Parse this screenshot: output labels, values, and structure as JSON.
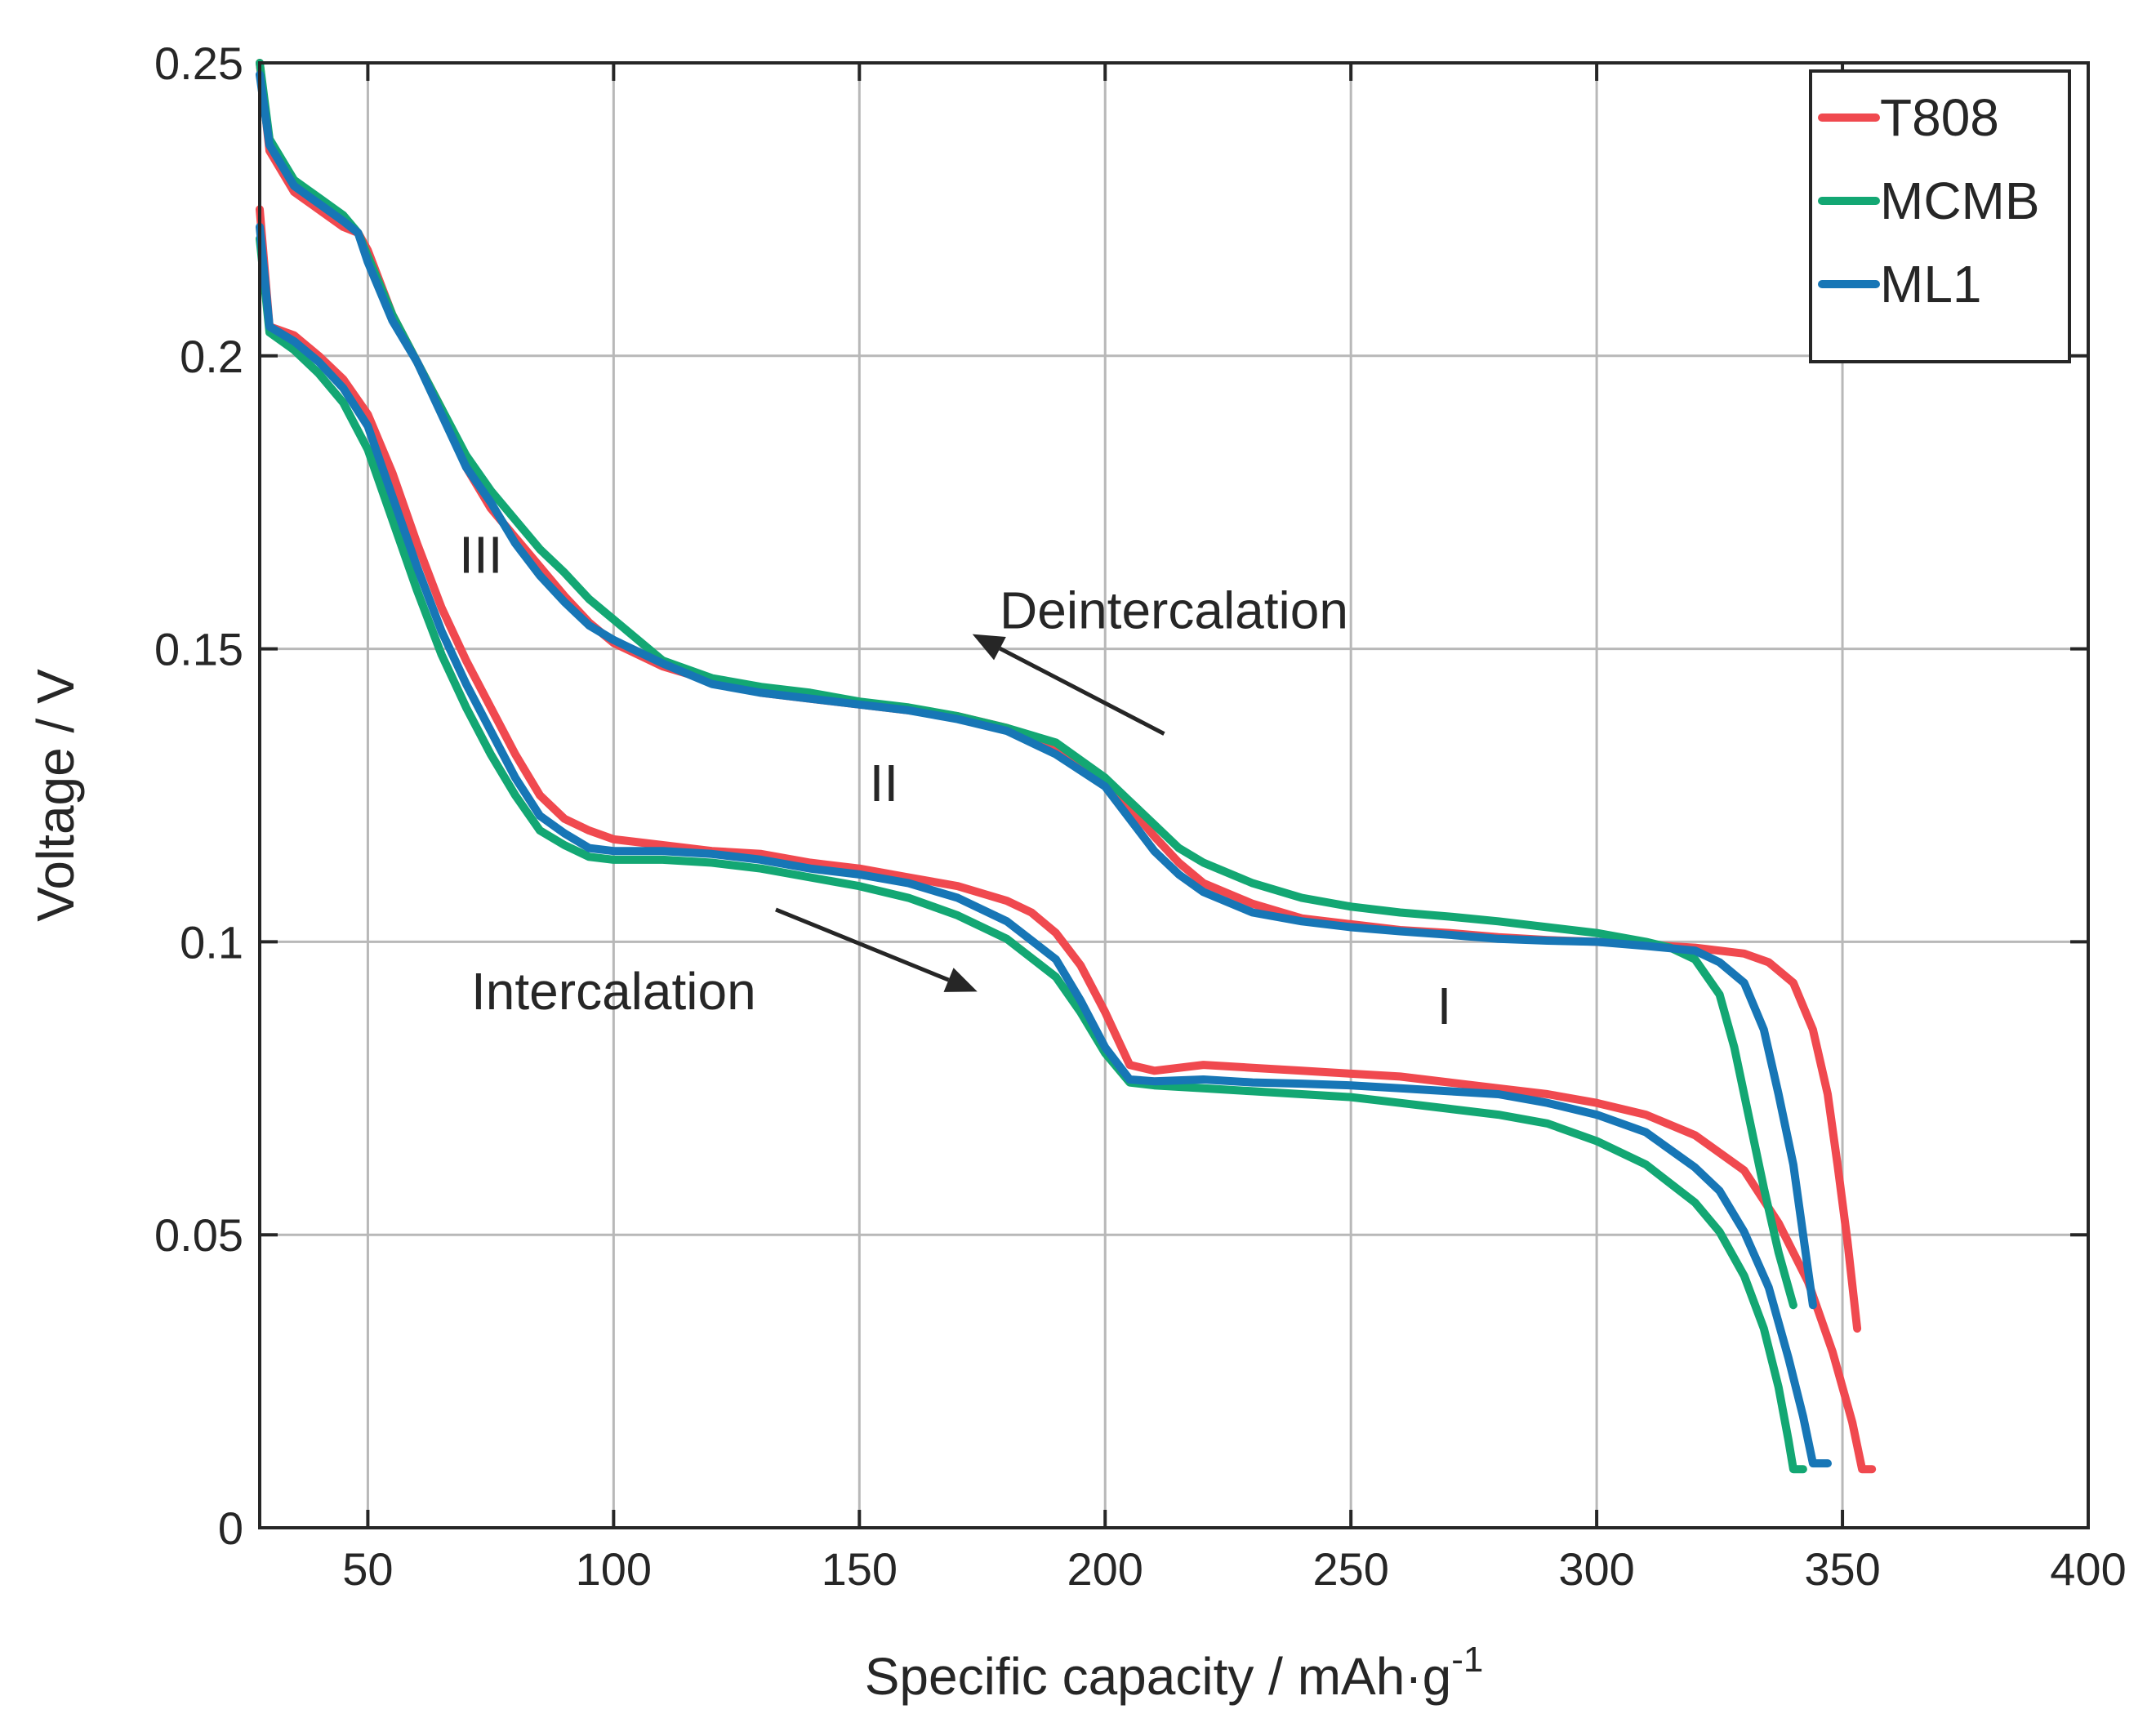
{
  "chart_data": {
    "type": "line",
    "xlabel": "Specific capacity / mAh·g",
    "xlabel_superscript": "-1",
    "ylabel": "Voltage / V",
    "xlim": [
      28,
      400
    ],
    "ylim": [
      0,
      0.25
    ],
    "x_ticks": [
      50,
      100,
      150,
      200,
      250,
      300,
      350,
      400
    ],
    "x_tick_labels": [
      "50",
      "100",
      "150",
      "200",
      "250",
      "300",
      "350",
      "400"
    ],
    "y_ticks": [
      0,
      0.05,
      0.1,
      0.15,
      0.2,
      0.25
    ],
    "y_tick_labels": [
      "0",
      "0.05",
      "0.1",
      "0.15",
      "0.2",
      "0.25"
    ],
    "grid": true,
    "legend_position": "top-right",
    "annotations": [
      {
        "text": "III",
        "x": 73,
        "y": 0.163
      },
      {
        "text": "II",
        "x": 155,
        "y": 0.124
      },
      {
        "text": "I",
        "x": 269,
        "y": 0.086
      },
      {
        "text": "Deintercalation",
        "x": 214,
        "y": 0.1535
      },
      {
        "text": "Intercalation",
        "x": 100,
        "y": 0.0885
      }
    ],
    "arrows": [
      {
        "name": "deintercalation-arrow",
        "from": [
          212,
          0.1355
        ],
        "to": [
          173,
          0.1525
        ]
      },
      {
        "name": "intercalation-arrow",
        "from": [
          133,
          0.1055
        ],
        "to": [
          174,
          0.0915
        ]
      }
    ],
    "series": [
      {
        "name": "T808",
        "color": "#F0494F",
        "discharge": [
          [
            28,
            0.225
          ],
          [
            30,
            0.205
          ],
          [
            35,
            0.2035
          ],
          [
            40,
            0.2
          ],
          [
            45,
            0.196
          ],
          [
            50,
            0.19
          ],
          [
            55,
            0.18
          ],
          [
            60,
            0.168
          ],
          [
            65,
            0.157
          ],
          [
            70,
            0.148
          ],
          [
            75,
            0.14
          ],
          [
            80,
            0.132
          ],
          [
            85,
            0.125
          ],
          [
            90,
            0.121
          ],
          [
            95,
            0.119
          ],
          [
            100,
            0.1175
          ],
          [
            110,
            0.1165
          ],
          [
            120,
            0.1155
          ],
          [
            130,
            0.115
          ],
          [
            140,
            0.1135
          ],
          [
            150,
            0.1125
          ],
          [
            160,
            0.111
          ],
          [
            170,
            0.1095
          ],
          [
            180,
            0.107
          ],
          [
            185,
            0.105
          ],
          [
            190,
            0.1015
          ],
          [
            195,
            0.096
          ],
          [
            200,
            0.088
          ],
          [
            205,
            0.079
          ],
          [
            210,
            0.078
          ],
          [
            220,
            0.079
          ],
          [
            230,
            0.0785
          ],
          [
            240,
            0.078
          ],
          [
            250,
            0.0775
          ],
          [
            260,
            0.077
          ],
          [
            270,
            0.076
          ],
          [
            280,
            0.075
          ],
          [
            290,
            0.074
          ],
          [
            300,
            0.0725
          ],
          [
            310,
            0.0705
          ],
          [
            320,
            0.067
          ],
          [
            330,
            0.061
          ],
          [
            337,
            0.052
          ],
          [
            343,
            0.042
          ],
          [
            348,
            0.03
          ],
          [
            352,
            0.018
          ],
          [
            354,
            0.01
          ],
          [
            356,
            0.01
          ]
        ],
        "charge": [
          [
            28,
            0.25
          ],
          [
            30,
            0.235
          ],
          [
            35,
            0.228
          ],
          [
            40,
            0.225
          ],
          [
            45,
            0.222
          ],
          [
            48,
            0.221
          ],
          [
            50,
            0.218
          ],
          [
            55,
            0.207
          ],
          [
            60,
            0.199
          ],
          [
            65,
            0.191
          ],
          [
            70,
            0.181
          ],
          [
            75,
            0.174
          ],
          [
            80,
            0.169
          ],
          [
            85,
            0.164
          ],
          [
            90,
            0.159
          ],
          [
            95,
            0.1545
          ],
          [
            100,
            0.151
          ],
          [
            110,
            0.147
          ],
          [
            120,
            0.1445
          ],
          [
            130,
            0.1425
          ],
          [
            140,
            0.1415
          ],
          [
            150,
            0.1405
          ],
          [
            160,
            0.1395
          ],
          [
            170,
            0.1385
          ],
          [
            180,
            0.1365
          ],
          [
            190,
            0.1335
          ],
          [
            200,
            0.128
          ],
          [
            205,
            0.123
          ],
          [
            210,
            0.118
          ],
          [
            215,
            0.1135
          ],
          [
            220,
            0.11
          ],
          [
            230,
            0.1065
          ],
          [
            240,
            0.104
          ],
          [
            250,
            0.103
          ],
          [
            260,
            0.102
          ],
          [
            270,
            0.1015
          ],
          [
            280,
            0.1008
          ],
          [
            290,
            0.1003
          ],
          [
            300,
            0.1
          ],
          [
            310,
            0.0995
          ],
          [
            320,
            0.099
          ],
          [
            330,
            0.098
          ],
          [
            335,
            0.0965
          ],
          [
            340,
            0.093
          ],
          [
            344,
            0.085
          ],
          [
            347,
            0.074
          ],
          [
            349,
            0.062
          ],
          [
            351,
            0.049
          ],
          [
            353,
            0.034
          ]
        ]
      },
      {
        "name": "MCMB",
        "color": "#13A773",
        "discharge": [
          [
            28,
            0.22
          ],
          [
            30,
            0.204
          ],
          [
            35,
            0.201
          ],
          [
            40,
            0.197
          ],
          [
            45,
            0.192
          ],
          [
            50,
            0.184
          ],
          [
            55,
            0.172
          ],
          [
            60,
            0.16
          ],
          [
            65,
            0.149
          ],
          [
            70,
            0.14
          ],
          [
            75,
            0.132
          ],
          [
            80,
            0.125
          ],
          [
            85,
            0.119
          ],
          [
            90,
            0.1165
          ],
          [
            95,
            0.1145
          ],
          [
            100,
            0.114
          ],
          [
            110,
            0.114
          ],
          [
            120,
            0.1135
          ],
          [
            130,
            0.1125
          ],
          [
            140,
            0.111
          ],
          [
            150,
            0.1095
          ],
          [
            160,
            0.1075
          ],
          [
            170,
            0.1045
          ],
          [
            180,
            0.1005
          ],
          [
            190,
            0.094
          ],
          [
            195,
            0.088
          ],
          [
            200,
            0.081
          ],
          [
            205,
            0.076
          ],
          [
            210,
            0.0755
          ],
          [
            220,
            0.075
          ],
          [
            230,
            0.0745
          ],
          [
            240,
            0.074
          ],
          [
            250,
            0.0735
          ],
          [
            260,
            0.0725
          ],
          [
            270,
            0.0715
          ],
          [
            280,
            0.0705
          ],
          [
            290,
            0.069
          ],
          [
            300,
            0.066
          ],
          [
            310,
            0.062
          ],
          [
            320,
            0.0555
          ],
          [
            325,
            0.0505
          ],
          [
            330,
            0.043
          ],
          [
            334,
            0.034
          ],
          [
            337,
            0.024
          ],
          [
            339,
            0.015
          ],
          [
            340,
            0.01
          ],
          [
            342,
            0.01
          ]
        ],
        "charge": [
          [
            28,
            0.25
          ],
          [
            30,
            0.237
          ],
          [
            35,
            0.23
          ],
          [
            40,
            0.227
          ],
          [
            45,
            0.224
          ],
          [
            48,
            0.221
          ],
          [
            50,
            0.217
          ],
          [
            55,
            0.207
          ],
          [
            60,
            0.199
          ],
          [
            65,
            0.191
          ],
          [
            70,
            0.183
          ],
          [
            75,
            0.177
          ],
          [
            80,
            0.172
          ],
          [
            85,
            0.167
          ],
          [
            90,
            0.163
          ],
          [
            95,
            0.1585
          ],
          [
            100,
            0.155
          ],
          [
            110,
            0.148
          ],
          [
            120,
            0.145
          ],
          [
            130,
            0.1435
          ],
          [
            140,
            0.1425
          ],
          [
            150,
            0.141
          ],
          [
            160,
            0.14
          ],
          [
            170,
            0.1385
          ],
          [
            180,
            0.1365
          ],
          [
            190,
            0.134
          ],
          [
            200,
            0.128
          ],
          [
            205,
            0.124
          ],
          [
            210,
            0.12
          ],
          [
            215,
            0.116
          ],
          [
            220,
            0.1135
          ],
          [
            230,
            0.11
          ],
          [
            240,
            0.1075
          ],
          [
            250,
            0.106
          ],
          [
            260,
            0.105
          ],
          [
            270,
            0.1043
          ],
          [
            280,
            0.1035
          ],
          [
            290,
            0.1025
          ],
          [
            300,
            0.1015
          ],
          [
            310,
            0.1
          ],
          [
            315,
            0.099
          ],
          [
            320,
            0.097
          ],
          [
            325,
            0.091
          ],
          [
            328,
            0.082
          ],
          [
            331,
            0.07
          ],
          [
            334,
            0.058
          ],
          [
            337,
            0.047
          ],
          [
            340,
            0.038
          ]
        ]
      },
      {
        "name": "ML1",
        "color": "#1776B6",
        "discharge": [
          [
            28,
            0.222
          ],
          [
            30,
            0.205
          ],
          [
            35,
            0.2025
          ],
          [
            40,
            0.199
          ],
          [
            45,
            0.1945
          ],
          [
            50,
            0.188
          ],
          [
            55,
            0.176
          ],
          [
            60,
            0.164
          ],
          [
            65,
            0.153
          ],
          [
            70,
            0.144
          ],
          [
            75,
            0.136
          ],
          [
            80,
            0.128
          ],
          [
            85,
            0.1215
          ],
          [
            90,
            0.1185
          ],
          [
            95,
            0.116
          ],
          [
            100,
            0.1155
          ],
          [
            110,
            0.1155
          ],
          [
            120,
            0.115
          ],
          [
            130,
            0.114
          ],
          [
            140,
            0.1125
          ],
          [
            150,
            0.1115
          ],
          [
            160,
            0.11
          ],
          [
            170,
            0.1075
          ],
          [
            180,
            0.1035
          ],
          [
            190,
            0.097
          ],
          [
            195,
            0.09
          ],
          [
            200,
            0.082
          ],
          [
            205,
            0.0765
          ],
          [
            210,
            0.0762
          ],
          [
            220,
            0.0765
          ],
          [
            230,
            0.076
          ],
          [
            240,
            0.0758
          ],
          [
            250,
            0.0755
          ],
          [
            260,
            0.075
          ],
          [
            270,
            0.0745
          ],
          [
            280,
            0.074
          ],
          [
            290,
            0.0725
          ],
          [
            300,
            0.0705
          ],
          [
            310,
            0.0675
          ],
          [
            320,
            0.0615
          ],
          [
            325,
            0.0575
          ],
          [
            330,
            0.0505
          ],
          [
            335,
            0.041
          ],
          [
            339,
            0.029
          ],
          [
            342,
            0.019
          ],
          [
            344,
            0.011
          ],
          [
            347,
            0.011
          ]
        ],
        "charge": [
          [
            28,
            0.248
          ],
          [
            30,
            0.236
          ],
          [
            35,
            0.229
          ],
          [
            40,
            0.226
          ],
          [
            45,
            0.223
          ],
          [
            48,
            0.221
          ],
          [
            50,
            0.216
          ],
          [
            55,
            0.206
          ],
          [
            60,
            0.199
          ],
          [
            65,
            0.19
          ],
          [
            70,
            0.181
          ],
          [
            75,
            0.175
          ],
          [
            80,
            0.168
          ],
          [
            85,
            0.1625
          ],
          [
            90,
            0.158
          ],
          [
            95,
            0.154
          ],
          [
            100,
            0.1515
          ],
          [
            110,
            0.1475
          ],
          [
            120,
            0.144
          ],
          [
            130,
            0.1425
          ],
          [
            140,
            0.1415
          ],
          [
            150,
            0.1405
          ],
          [
            160,
            0.1395
          ],
          [
            170,
            0.138
          ],
          [
            180,
            0.136
          ],
          [
            190,
            0.132
          ],
          [
            200,
            0.1265
          ],
          [
            205,
            0.121
          ],
          [
            210,
            0.1155
          ],
          [
            215,
            0.1115
          ],
          [
            220,
            0.1085
          ],
          [
            230,
            0.105
          ],
          [
            240,
            0.1035
          ],
          [
            250,
            0.1025
          ],
          [
            260,
            0.1018
          ],
          [
            270,
            0.1012
          ],
          [
            280,
            0.1005
          ],
          [
            290,
            0.1002
          ],
          [
            300,
            0.1
          ],
          [
            310,
            0.0993
          ],
          [
            320,
            0.0985
          ],
          [
            325,
            0.0965
          ],
          [
            330,
            0.093
          ],
          [
            334,
            0.085
          ],
          [
            337,
            0.074
          ],
          [
            340,
            0.062
          ],
          [
            342,
            0.05
          ],
          [
            344,
            0.038
          ]
        ]
      }
    ]
  }
}
